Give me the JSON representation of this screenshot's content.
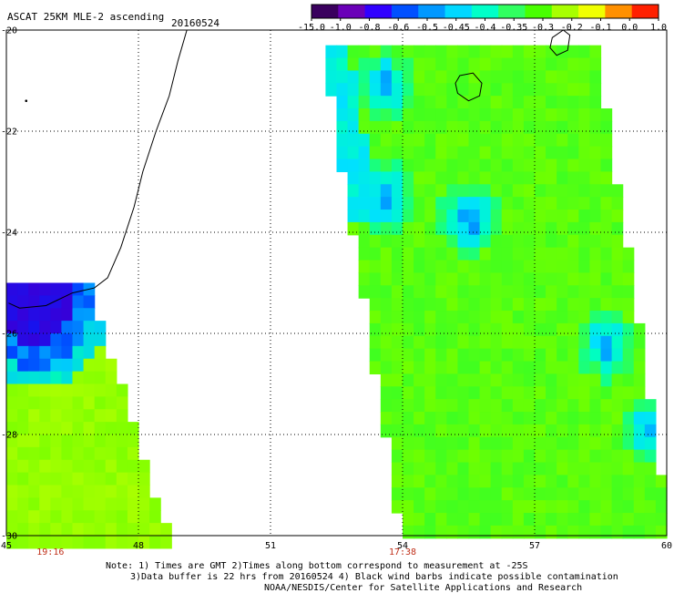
{
  "header": {
    "title": "ASCAT 25KM MLE-2 ascending",
    "date": "20160524"
  },
  "colorbar": {
    "labels": [
      "-15.0",
      "-1.0",
      "-0.8",
      "-0.6",
      "-0.5",
      "-0.45",
      "-0.4",
      "-0.35",
      "-0.3",
      "-0.2",
      "-0.1",
      "0.0",
      "1.0"
    ],
    "colors": [
      "#3a005e",
      "#6a00b8",
      "#3000ff",
      "#0050ff",
      "#0098ff",
      "#00d8ff",
      "#00ffc8",
      "#30ff60",
      "#48ff00",
      "#a8ff00",
      "#f0ff00",
      "#ff9000",
      "#ff2000"
    ]
  },
  "chart_data": {
    "type": "heatmap",
    "title": "ASCAT 25KM MLE-2 ascending",
    "date": "20160524",
    "xlim": [
      45,
      60
    ],
    "ylim": [
      -30,
      -20
    ],
    "x_ticks": [
      45,
      48,
      51,
      54,
      57,
      60
    ],
    "x_tick_labels": [
      "45",
      "48",
      "51",
      "54",
      "57",
      "60"
    ],
    "y_ticks": [
      -20,
      -22,
      -24,
      -26,
      -28,
      -30
    ],
    "y_tick_labels": [
      "-20",
      "-22",
      "-24",
      "-26",
      "-28",
      "-30"
    ],
    "grid": true,
    "swaths": [
      {
        "time": "19:16",
        "time_lon": 46,
        "lat_top": -25.0,
        "lat_bottom": -30.0,
        "lon_left": [
          45.0,
          45.0
        ],
        "lon_right": [
          46.8,
          48.6
        ],
        "low_patch": {
          "lon": [
            45.0,
            46.8
          ],
          "lat": [
            -25.0,
            -26.9
          ],
          "value": -0.8
        }
      },
      {
        "time": "17:38",
        "time_lon": 54,
        "lat_top": -20.3,
        "lat_bottom": -30.0,
        "lon_left": [
          52.2,
          54.0
        ],
        "lon_right": [
          58.3,
          60.0
        ],
        "low_spots": [
          {
            "lon": 53.5,
            "lat": -21.0,
            "value": -0.45
          },
          {
            "lon": 53.5,
            "lat": -23.2,
            "value": -0.5
          },
          {
            "lon": 55.4,
            "lat": -23.6,
            "value": -0.4
          },
          {
            "lon": 58.5,
            "lat": -26.1,
            "value": -0.4
          },
          {
            "lon": 59.6,
            "lat": -27.8,
            "value": -0.4
          }
        ],
        "background_value": -0.35
      }
    ]
  },
  "notes": {
    "line1": "Note: 1) Times are GMT 2)Times along bottom correspond to measurement at -25S",
    "line2": "3)Data buffer is 22 hrs from 20160524 4) Black wind barbs indicate possible contamination",
    "line3": "NOAA/NESDIS/Center for Satellite Applications and Research"
  }
}
